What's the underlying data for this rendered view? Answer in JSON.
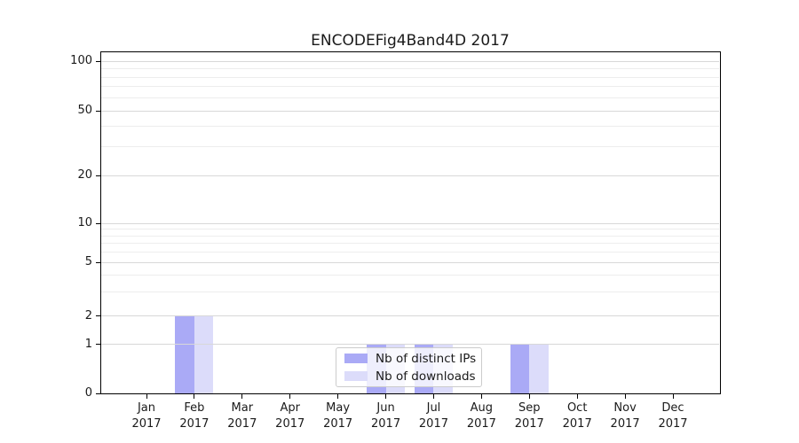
{
  "figure": {
    "background": "#ffffff"
  },
  "chart_data": {
    "type": "bar",
    "title": "ENCODEFig4Band4D 2017",
    "x": {
      "categories": [
        "Jan",
        "Feb",
        "Mar",
        "Apr",
        "May",
        "Jun",
        "Jul",
        "Aug",
        "Sep",
        "Oct",
        "Nov",
        "Dec"
      ],
      "year": "2017"
    },
    "series": [
      {
        "name": "Nb of distinct IPs",
        "color": "#aaaaf6",
        "values": [
          0,
          2,
          0,
          0,
          0,
          1,
          1,
          0,
          1,
          0,
          0,
          0
        ]
      },
      {
        "name": "Nb of downloads",
        "color": "#dcdcfa",
        "values": [
          0,
          2,
          0,
          0,
          0,
          1,
          1,
          0,
          1,
          0,
          0,
          0
        ]
      }
    ],
    "y_axis": {
      "scale": "symlog",
      "major_ticks": [
        0,
        1,
        2,
        5,
        10,
        20,
        50,
        100
      ],
      "minor_gridlines": [
        3,
        4,
        6,
        7,
        8,
        9,
        30,
        40,
        60,
        70,
        80,
        90
      ],
      "range": [
        0,
        115
      ]
    },
    "legend": {
      "entries": [
        "Nb of distinct IPs",
        "Nb of downloads"
      ],
      "position": "lower-center"
    },
    "grid": true
  },
  "colors": {
    "bar_distinct_ips": "#aaaaf6",
    "bar_downloads": "#dcdcfa",
    "grid_major": "#d8d8d8",
    "grid_minor": "#ededed",
    "spine": "#000000",
    "legend_border": "#cccccc",
    "text": "#1a1a1a"
  }
}
